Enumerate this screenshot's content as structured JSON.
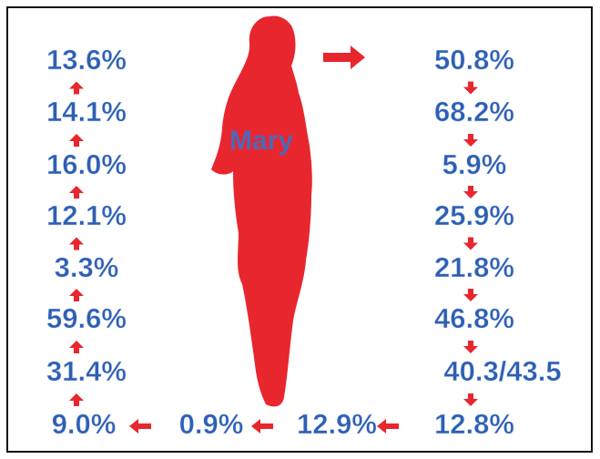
{
  "figure_label": "Mary",
  "right_column": [
    "50.8%",
    "68.2%",
    "5.9%",
    "25.9%",
    "21.8%",
    "46.8%",
    "40.3/43.5",
    "12.8%"
  ],
  "bottom_row": [
    "12.9%",
    "0.9%"
  ],
  "left_column": [
    "9.0%",
    "31.4%",
    "59.6%",
    "3.3%",
    "12.1%",
    "16.0%",
    "14.1%",
    "13.6%"
  ]
}
